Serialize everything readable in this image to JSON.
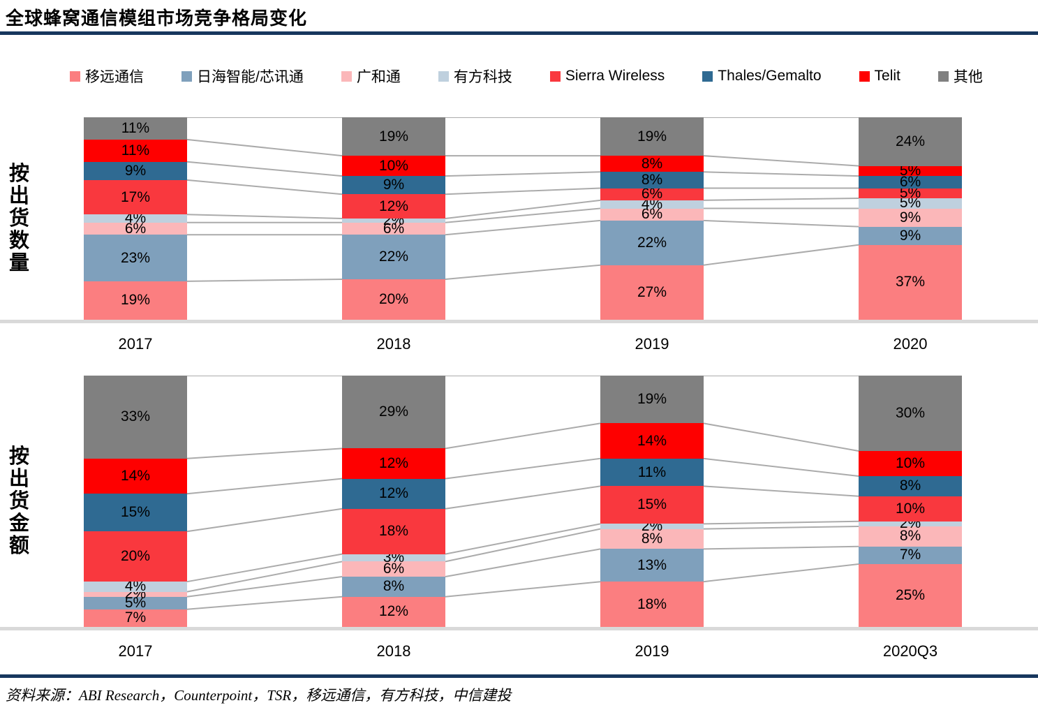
{
  "title": "全球蜂窝通信模组市场竞争格局变化",
  "source": "资料来源：ABI Research，Counterpoint，TSR，移远通信，有方科技，中信建投",
  "colors": {
    "rule": "#17375E",
    "baseline": "#D9D9D9",
    "connector": "#ABABAB",
    "label_text": "#000000"
  },
  "legend": [
    {
      "label": "移远通信",
      "color": "#FB7E80"
    },
    {
      "label": "日海智能/芯讯通",
      "color": "#7FA0BC"
    },
    {
      "label": "广和通",
      "color": "#FBB7B9"
    },
    {
      "label": "有方科技",
      "color": "#BFD0DE"
    },
    {
      "label": "Sierra Wireless",
      "color": "#F9383E"
    },
    {
      "label": "Thales/Gemalto",
      "color": "#2F6A92"
    },
    {
      "label": "Telit",
      "color": "#FE0000"
    },
    {
      "label": "其他",
      "color": "#808080"
    }
  ],
  "chart_data": [
    {
      "type": "bar",
      "stacked": true,
      "unit": "%",
      "title": "按出货数量",
      "categories": [
        "2017",
        "2018",
        "2019",
        "2020"
      ],
      "series": [
        {
          "name": "移远通信",
          "values": [
            19,
            20,
            27,
            37
          ]
        },
        {
          "name": "日海智能/芯讯通",
          "values": [
            23,
            22,
            22,
            9
          ]
        },
        {
          "name": "广和通",
          "values": [
            6,
            6,
            6,
            9
          ]
        },
        {
          "name": "有方科技",
          "values": [
            4,
            2,
            4,
            5
          ]
        },
        {
          "name": "Sierra Wireless",
          "values": [
            17,
            12,
            6,
            5
          ]
        },
        {
          "name": "Thales/Gemalto",
          "values": [
            9,
            9,
            8,
            6
          ]
        },
        {
          "name": "Telit",
          "values": [
            11,
            10,
            8,
            5
          ]
        },
        {
          "name": "其他",
          "values": [
            11,
            19,
            19,
            24
          ]
        }
      ],
      "ylim": [
        0,
        100
      ],
      "grid": false,
      "legend_position": "top"
    },
    {
      "type": "bar",
      "stacked": true,
      "unit": "%",
      "title": "按出货金额",
      "categories": [
        "2017",
        "2018",
        "2019",
        "2020Q3"
      ],
      "series": [
        {
          "name": "移远通信",
          "values": [
            7,
            12,
            18,
            25
          ]
        },
        {
          "name": "日海智能/芯讯通",
          "values": [
            5,
            8,
            13,
            7
          ]
        },
        {
          "name": "广和通",
          "values": [
            2,
            6,
            8,
            8
          ]
        },
        {
          "name": "有方科技",
          "values": [
            4,
            3,
            2,
            2
          ]
        },
        {
          "name": "Sierra Wireless",
          "values": [
            20,
            18,
            15,
            10
          ]
        },
        {
          "name": "Thales/Gemalto",
          "values": [
            15,
            12,
            11,
            8
          ]
        },
        {
          "name": "Telit",
          "values": [
            14,
            12,
            14,
            10
          ]
        },
        {
          "name": "其他",
          "values": [
            33,
            29,
            19,
            30
          ]
        }
      ],
      "ylim": [
        0,
        100
      ],
      "grid": false,
      "legend_position": "top"
    }
  ]
}
